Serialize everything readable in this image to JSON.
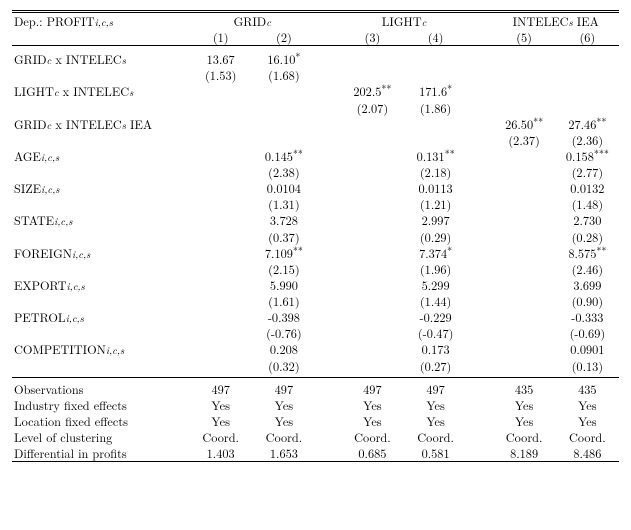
{
  "header": {
    "dep_label_pre": "Dep.: PROFIT",
    "dep_sub": "i,c,s",
    "groups": [
      {
        "pre": "GRID",
        "sub": "c",
        "post": ""
      },
      {
        "pre": "LIGHT",
        "sub": "c",
        "post": ""
      },
      {
        "pre": "INTELEC",
        "sub": "s",
        "post": " IEA"
      }
    ],
    "cols": [
      "(1)",
      "(2)",
      "(3)",
      "(4)",
      "(5)",
      "(6)"
    ]
  },
  "rows": [
    {
      "type": "coef_se",
      "label": {
        "parts": [
          {
            "t": "GRID"
          },
          {
            "sub": "c"
          },
          {
            "t": " x INTELEC"
          },
          {
            "sub": "s"
          }
        ]
      },
      "coef": [
        "13.67",
        "16.10*",
        "",
        "",
        "",
        ""
      ],
      "se": [
        "(1.53)",
        "(1.68)",
        "",
        "",
        "",
        ""
      ]
    },
    {
      "type": "coef_se",
      "label": {
        "parts": [
          {
            "t": "LIGHT"
          },
          {
            "sub": "c"
          },
          {
            "t": " x INTELEC"
          },
          {
            "sub": "s"
          }
        ]
      },
      "coef": [
        "",
        "",
        "202.5**",
        "171.6*",
        "",
        ""
      ],
      "se": [
        "",
        "",
        "(2.07)",
        "(1.86)",
        "",
        ""
      ]
    },
    {
      "type": "coef_se",
      "label": {
        "parts": [
          {
            "t": "GRID"
          },
          {
            "sub": "c"
          },
          {
            "t": " x INTELEC"
          },
          {
            "sub": "s"
          },
          {
            "t": " IEA"
          }
        ]
      },
      "coef": [
        "",
        "",
        "",
        "",
        "26.50**",
        "27.46**"
      ],
      "se": [
        "",
        "",
        "",
        "",
        "(2.37)",
        "(2.36)"
      ]
    },
    {
      "type": "coef_se",
      "label": {
        "parts": [
          {
            "t": "AGE"
          },
          {
            "sub": "i,c,s"
          }
        ]
      },
      "coef": [
        "",
        "0.145**",
        "",
        "0.131**",
        "",
        "0.158***"
      ],
      "se": [
        "",
        "(2.38)",
        "",
        "(2.18)",
        "",
        "(2.77)"
      ]
    },
    {
      "type": "coef_se",
      "label": {
        "parts": [
          {
            "t": "SIZE"
          },
          {
            "sub": "i,c,s"
          }
        ]
      },
      "coef": [
        "",
        "0.0104",
        "",
        "0.0113",
        "",
        "0.0132"
      ],
      "se": [
        "",
        "(1.31)",
        "",
        "(1.21)",
        "",
        "(1.48)"
      ]
    },
    {
      "type": "coef_se",
      "label": {
        "parts": [
          {
            "t": "STATE"
          },
          {
            "sub": "i,c,s"
          }
        ]
      },
      "coef": [
        "",
        "3.728",
        "",
        "2.997",
        "",
        "2.730"
      ],
      "se": [
        "",
        "(0.37)",
        "",
        "(0.29)",
        "",
        "(0.28)"
      ]
    },
    {
      "type": "coef_se",
      "label": {
        "parts": [
          {
            "t": "FOREIGN"
          },
          {
            "sub": "i,c,s"
          }
        ]
      },
      "coef": [
        "",
        "7.109**",
        "",
        "7.374*",
        "",
        "8.575**"
      ],
      "se": [
        "",
        "(2.15)",
        "",
        "(1.96)",
        "",
        "(2.46)"
      ]
    },
    {
      "type": "coef_se",
      "label": {
        "parts": [
          {
            "t": "EXPORT"
          },
          {
            "sub": "i,c,s"
          }
        ]
      },
      "coef": [
        "",
        "5.990",
        "",
        "5.299",
        "",
        "3.699"
      ],
      "se": [
        "",
        "(1.61)",
        "",
        "(1.44)",
        "",
        "(0.90)"
      ]
    },
    {
      "type": "coef_se",
      "label": {
        "parts": [
          {
            "t": "PETROL"
          },
          {
            "sub": "i,c,s"
          }
        ]
      },
      "coef": [
        "",
        "-0.398",
        "",
        "-0.229",
        "",
        "-0.333"
      ],
      "se": [
        "",
        "(-0.76)",
        "",
        "(-0.47)",
        "",
        "(-0.69)"
      ]
    },
    {
      "type": "coef_se",
      "label": {
        "parts": [
          {
            "t": "COMPETITION"
          },
          {
            "sub": "i,c,s"
          }
        ]
      },
      "coef": [
        "",
        "0.208",
        "",
        "0.173",
        "",
        "0.0901"
      ],
      "se": [
        "",
        "(0.32)",
        "",
        "(0.27)",
        "",
        "(0.13)"
      ]
    }
  ],
  "footer": [
    {
      "label": "Observations",
      "vals": [
        "497",
        "497",
        "497",
        "497",
        "435",
        "435"
      ]
    },
    {
      "label": "Industry fixed effects",
      "vals": [
        "Yes",
        "Yes",
        "Yes",
        "Yes",
        "Yes",
        "Yes"
      ]
    },
    {
      "label": "Location fixed effects",
      "vals": [
        "Yes",
        "Yes",
        "Yes",
        "Yes",
        "Yes",
        "Yes"
      ]
    },
    {
      "label": "Level of clustering",
      "vals": [
        "Coord.",
        "Coord.",
        "Coord.",
        "Coord.",
        "Coord.",
        "Coord."
      ]
    },
    {
      "label": "Differential in profits",
      "vals": [
        "1.403",
        "1.653",
        "0.685",
        "0.581",
        "8.189",
        "8.486"
      ]
    }
  ],
  "layout": {
    "col_widths_pct": [
      28,
      10,
      10,
      4,
      10,
      10,
      4,
      10,
      10
    ]
  }
}
